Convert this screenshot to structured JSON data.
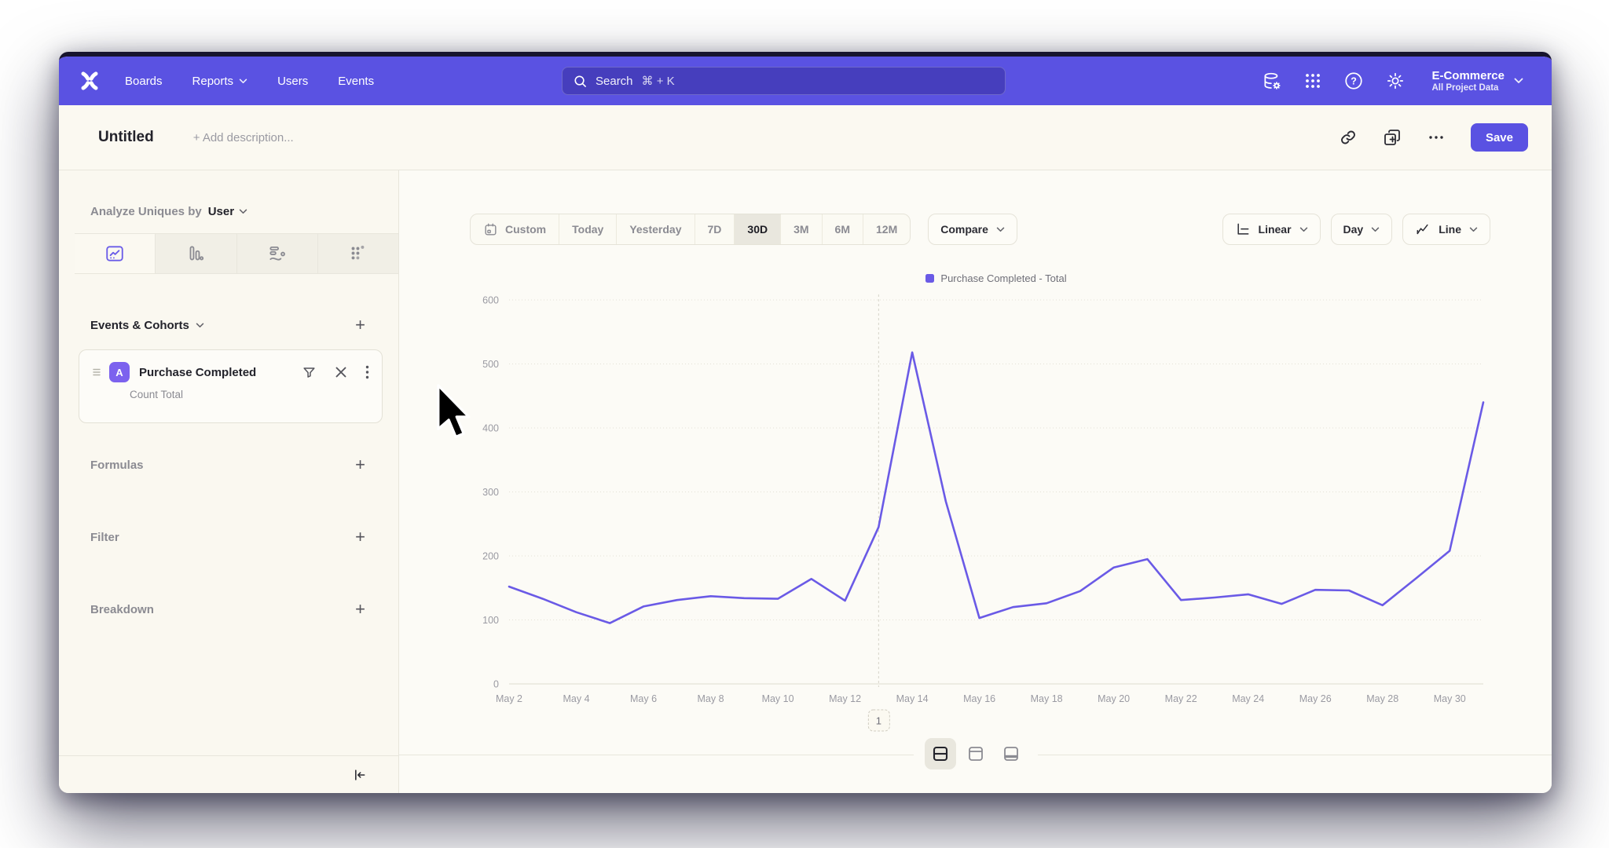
{
  "topnav": {
    "brand": "Mixpanel",
    "items": [
      {
        "label": "Boards",
        "chevron": false
      },
      {
        "label": "Reports",
        "chevron": true
      },
      {
        "label": "Users",
        "chevron": false
      },
      {
        "label": "Events",
        "chevron": false
      }
    ],
    "search": {
      "placeholder": "Search",
      "shortcut": "⌘ + K"
    },
    "project": {
      "name": "E-Commerce",
      "scope": "All Project Data"
    }
  },
  "report_header": {
    "title": "Untitled",
    "description_placeholder": "+ Add description...",
    "save_label": "Save"
  },
  "sidebar": {
    "analyze_label": "Analyze Uniques by",
    "analyze_value": "User",
    "events_cohorts_label": "Events & Cohorts",
    "event_card": {
      "badge": "A",
      "title": "Purchase Completed",
      "subtitle": "Count Total"
    },
    "formulas_label": "Formulas",
    "filter_label": "Filter",
    "breakdown_label": "Breakdown"
  },
  "toolbar": {
    "ranges": [
      "Custom",
      "Today",
      "Yesterday",
      "7D",
      "30D",
      "3M",
      "6M",
      "12M"
    ],
    "selected_range": "30D",
    "compare_label": "Compare",
    "scale_label": "Linear",
    "interval_label": "Day",
    "chart_type_label": "Line"
  },
  "chart_data": {
    "type": "line",
    "legend_label": "Purchase Completed - Total",
    "legend_position": "top-center",
    "grid": "horizontal-dotted",
    "x": [
      "May 2",
      "May 3",
      "May 4",
      "May 5",
      "May 6",
      "May 7",
      "May 8",
      "May 9",
      "May 10",
      "May 11",
      "May 12",
      "May 13",
      "May 14",
      "May 15",
      "May 16",
      "May 17",
      "May 18",
      "May 19",
      "May 20",
      "May 21",
      "May 22",
      "May 23",
      "May 24",
      "May 25",
      "May 26",
      "May 27",
      "May 28",
      "May 29",
      "May 30",
      "May 31"
    ],
    "x_tick_labels": [
      "May 2",
      "May 4",
      "May 6",
      "May 8",
      "May 10",
      "May 12",
      "May 14",
      "May 16",
      "May 18",
      "May 20",
      "May 22",
      "May 24",
      "May 26",
      "May 28",
      "May 30"
    ],
    "series": [
      {
        "name": "Purchase Completed - Total",
        "color": "#6a5ae6",
        "values": [
          152,
          133,
          112,
          95,
          121,
          131,
          137,
          134,
          133,
          164,
          130,
          245,
          518,
          285,
          103,
          120,
          126,
          145,
          182,
          195,
          131,
          135,
          140,
          125,
          147,
          146,
          123,
          165,
          208,
          440
        ]
      }
    ],
    "ylim": [
      0,
      600
    ],
    "y_ticks": [
      0,
      100,
      200,
      300,
      400,
      500,
      600
    ],
    "vline_x": "May 13"
  },
  "annotation": {
    "label": "1"
  },
  "colors": {
    "accent": "#5a52e2",
    "line": "#6a5ae6",
    "badge": "#7c62ee",
    "selected_chip": "#e9e7de"
  }
}
